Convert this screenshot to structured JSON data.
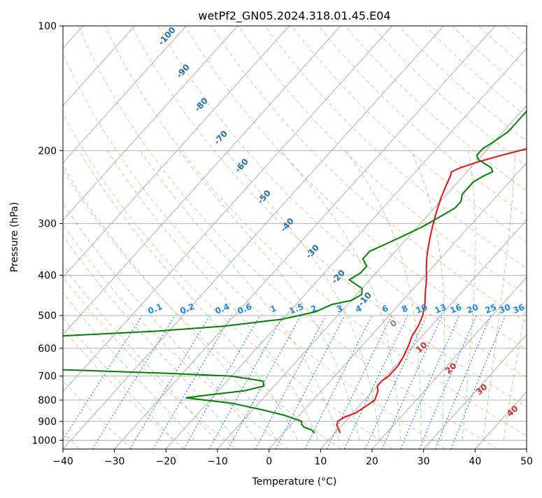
{
  "chart_data": {
    "type": "line",
    "title": "wetPf2_GN05.2024.318.01.45.E04",
    "xlabel": "Temperature (°C)",
    "ylabel": "Pressure (hPa)",
    "xlim": [
      -40,
      50
    ],
    "ylim": [
      1050,
      100
    ],
    "y_scale": "log",
    "grid": true,
    "x_ticks": [
      -40,
      -30,
      -20,
      -10,
      0,
      10,
      20,
      30,
      40,
      50
    ],
    "x_tick_labels": [
      "−40",
      "−30",
      "−20",
      "−10",
      "0",
      "10",
      "20",
      "30",
      "40",
      "50"
    ],
    "y_ticks": [
      1000,
      900,
      800,
      700,
      600,
      500,
      400,
      300,
      200,
      100
    ],
    "y_tick_labels": [
      "1000",
      "900",
      "800",
      "700",
      "600",
      "500",
      "400",
      "300",
      "200",
      "100"
    ],
    "dry_adiabat_labels": [
      "-100",
      "-90",
      "-80",
      "-70",
      "-60",
      "-50",
      "-40",
      "-30",
      "-20",
      "-10"
    ],
    "mixing_ratio_labels": [
      "0.1",
      "0.2",
      "0.4",
      "0.6",
      "1",
      "1.5",
      "2",
      "3",
      "4",
      "6",
      "8",
      "10",
      "13",
      "16",
      "20",
      "25",
      "30",
      "36"
    ],
    "moist_adiabat_labels": [
      "0",
      "10",
      "20",
      "30",
      "40"
    ],
    "colors": {
      "temperature": "#e8110f",
      "dewpoint": "#008000",
      "dry_adiabat": "#f4a582",
      "moist_adiabat": "#7fc97f",
      "mixing_ratio": "#1e88e5",
      "isotherm": "#808080",
      "dry_label": "#1f6fa8",
      "moist_label": "#d62728",
      "moist_zero_label": "#808080"
    },
    "series": [
      {
        "name": "",
        "role": "temperature",
        "points": [
          [
            11,
            960
          ],
          [
            10,
            940
          ],
          [
            9,
            920
          ],
          [
            8.5,
            900
          ],
          [
            9,
            880
          ],
          [
            10.5,
            860
          ],
          [
            11,
            840
          ],
          [
            11.5,
            820
          ],
          [
            12,
            800
          ],
          [
            11,
            760
          ],
          [
            10,
            740
          ],
          [
            10,
            720
          ],
          [
            10.5,
            700
          ],
          [
            10.5,
            660
          ],
          [
            10,
            630
          ],
          [
            9.5,
            610
          ],
          [
            9,
            590
          ],
          [
            8,
            560
          ],
          [
            7.5,
            530
          ],
          [
            6.5,
            500
          ],
          [
            5,
            470
          ],
          [
            3,
            440
          ],
          [
            1,
            410
          ],
          [
            -1,
            385
          ],
          [
            -3,
            360
          ],
          [
            -4.5,
            340
          ],
          [
            -6,
            320
          ],
          [
            -7.5,
            300
          ],
          [
            -9,
            280
          ],
          [
            -10.5,
            260
          ],
          [
            -11.5,
            245
          ],
          [
            -12.5,
            230
          ],
          [
            -13,
            225
          ],
          [
            -12,
            220
          ],
          [
            -10,
            214
          ],
          [
            -7,
            207
          ],
          [
            -3,
            199
          ],
          [
            2,
            190
          ],
          [
            5,
            183
          ],
          [
            8,
            175
          ],
          [
            10,
            168
          ],
          [
            12,
            160
          ],
          [
            14,
            153
          ],
          [
            17,
            145
          ],
          [
            20,
            138
          ],
          [
            24,
            130
          ],
          [
            27,
            122
          ],
          [
            29,
            115
          ],
          [
            31,
            108
          ],
          [
            33,
            100
          ]
        ]
      },
      {
        "name": "",
        "role": "dewpoint",
        "points": [
          [
            6,
            960
          ],
          [
            5,
            945
          ],
          [
            3,
            930
          ],
          [
            2,
            915
          ],
          [
            1.5,
            900
          ],
          [
            0,
            890
          ],
          [
            -3,
            870
          ],
          [
            -8,
            845
          ],
          [
            -15,
            815
          ],
          [
            -25,
            790
          ],
          [
            -22,
            780
          ],
          [
            -15,
            760
          ],
          [
            -12,
            740
          ],
          [
            -13,
            720
          ],
          [
            -20,
            700
          ],
          [
            -32,
            690
          ],
          [
            -55,
            675
          ],
          [
            -70,
            665
          ],
          [
            -60,
            560
          ],
          [
            -42,
            545
          ],
          [
            -30,
            530
          ],
          [
            -20,
            510
          ],
          [
            -15,
            490
          ],
          [
            -13,
            470
          ],
          [
            -10,
            460
          ],
          [
            -9,
            445
          ],
          [
            -10,
            430
          ],
          [
            -12,
            420
          ],
          [
            -14,
            410
          ],
          [
            -13,
            395
          ],
          [
            -13,
            380
          ],
          [
            -15,
            365
          ],
          [
            -15,
            350
          ],
          [
            -13,
            335
          ],
          [
            -11,
            320
          ],
          [
            -9,
            305
          ],
          [
            -8,
            295
          ],
          [
            -7,
            285
          ],
          [
            -6,
            275
          ],
          [
            -6,
            265
          ],
          [
            -7,
            255
          ],
          [
            -7,
            245
          ],
          [
            -7,
            238
          ],
          [
            -6,
            230
          ],
          [
            -5,
            225
          ],
          [
            -6,
            220
          ],
          [
            -8,
            215
          ],
          [
            -10,
            210
          ],
          [
            -11,
            205
          ],
          [
            -11,
            198
          ],
          [
            -10,
            190
          ],
          [
            -9,
            180
          ],
          [
            -9,
            170
          ],
          [
            -9,
            160
          ],
          [
            -9,
            152
          ],
          [
            -8,
            146
          ],
          [
            -7,
            140
          ],
          [
            -5,
            133
          ],
          [
            -4,
            127
          ],
          [
            -2,
            122
          ],
          [
            0,
            118
          ],
          [
            2,
            113
          ],
          [
            3,
            108
          ],
          [
            4,
            103
          ],
          [
            5,
            100
          ]
        ]
      }
    ]
  }
}
